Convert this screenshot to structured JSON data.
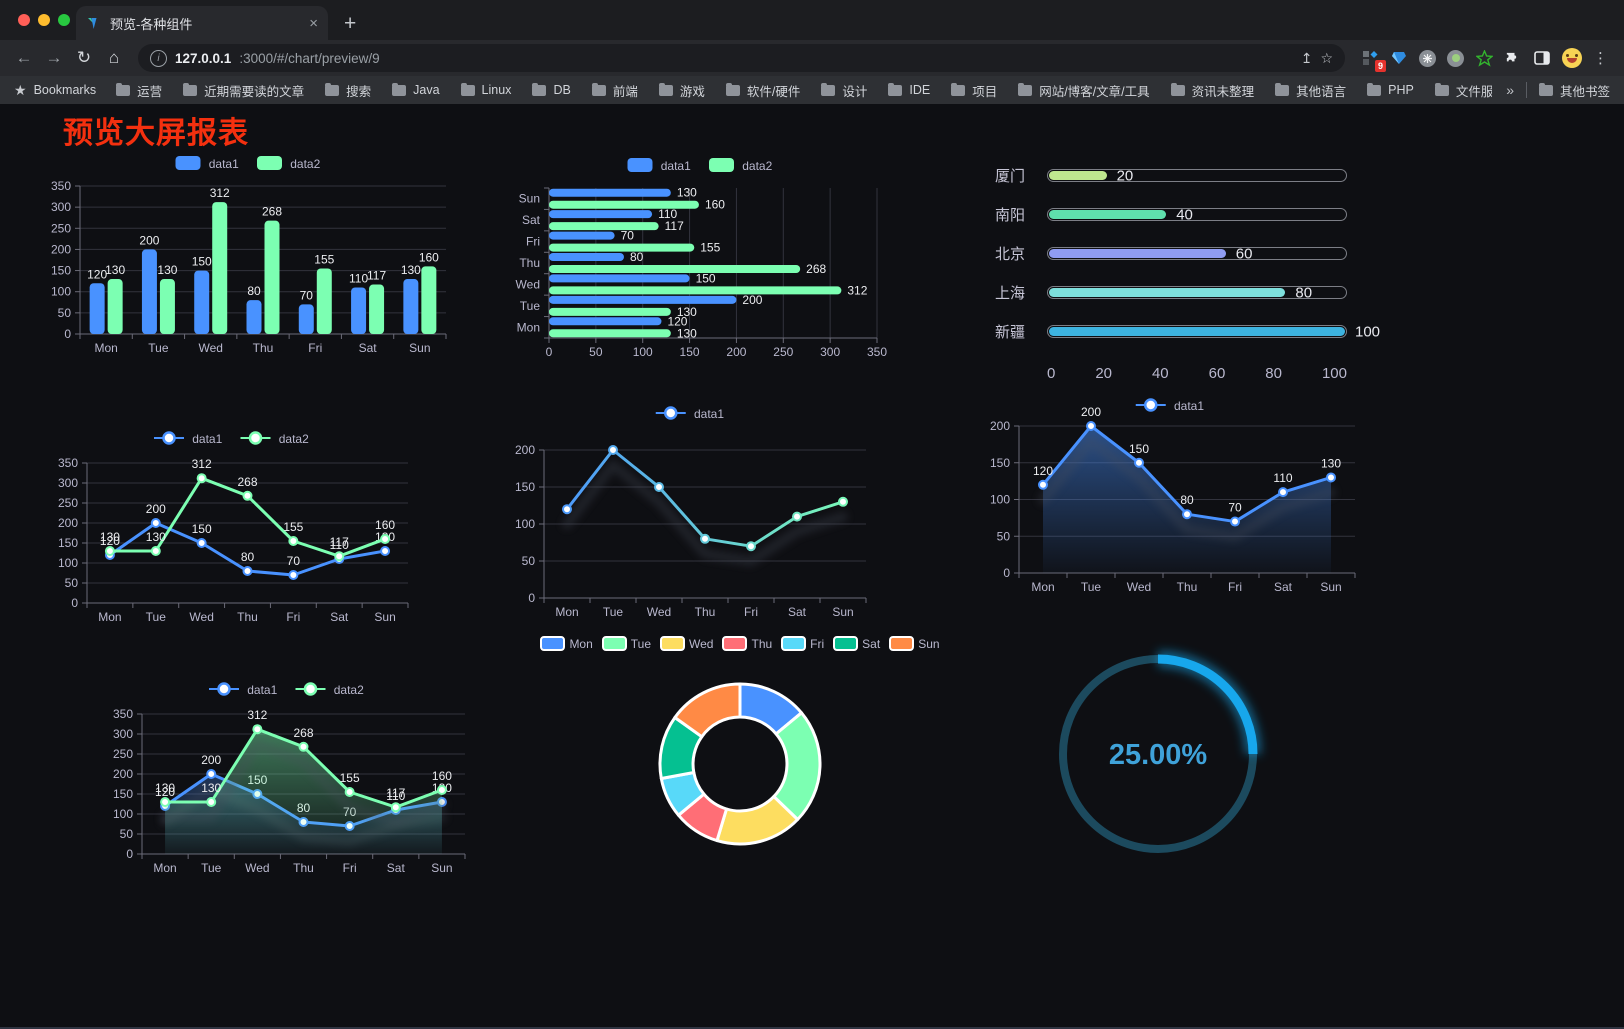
{
  "browser": {
    "window_controls": {
      "close_color": "#ff5f57",
      "minimize_color": "#febc2e",
      "maximize_color": "#28c840"
    },
    "tab": {
      "title": "预览-各种组件",
      "close_glyph": "×",
      "new_tab_glyph": "+"
    },
    "nav": {
      "back_glyph": "←",
      "forward_glyph": "→",
      "reload_glyph": "↻",
      "home_glyph": "⌂",
      "url_host": "127.0.0.1",
      "url_rest": ":3000/#/chart/preview/9",
      "share_glyph": "↥",
      "star_glyph": "☆",
      "menu_glyph": "⋮"
    },
    "extensions": {
      "badge": "9"
    },
    "bookmarks_bar": {
      "root_label": "Bookmarks",
      "folders": [
        "运营",
        "近期需要读的文章",
        "搜索",
        "Java",
        "Linux",
        "DB",
        "前端",
        "游戏",
        "软件/硬件",
        "设计",
        "IDE",
        "项目",
        "网站/博客/文章/工具",
        "资讯未整理",
        "其他语言",
        "PHP",
        "文件服务器"
      ],
      "overflow_glyph": "»",
      "other_bookmarks_label": "其他书签"
    }
  },
  "page": {
    "title": "预览大屏报表",
    "title_color": "#f4300f",
    "background": "#0e0f13"
  },
  "chart_data": [
    {
      "id": "grouped-bar",
      "type": "bar",
      "categories": [
        "Mon",
        "Tue",
        "Wed",
        "Thu",
        "Fri",
        "Sat",
        "Sun"
      ],
      "series": [
        {
          "name": "data1",
          "color": "#4992ff",
          "values": [
            120,
            200,
            150,
            80,
            70,
            110,
            130
          ]
        },
        {
          "name": "data2",
          "color": "#7cffb2",
          "values": [
            130,
            130,
            312,
            268,
            155,
            117,
            160
          ]
        }
      ],
      "ylim": [
        0,
        350
      ],
      "ytick": 50,
      "labels": true,
      "legend_position": "top",
      "grid": true
    },
    {
      "id": "horizontal-bar",
      "type": "bar-horizontal",
      "categories": [
        "Mon",
        "Tue",
        "Wed",
        "Thu",
        "Fri",
        "Sat",
        "Sun"
      ],
      "series": [
        {
          "name": "data1",
          "color": "#4992ff",
          "values": [
            120,
            200,
            150,
            80,
            70,
            110,
            130
          ]
        },
        {
          "name": "data2",
          "color": "#7cffb2",
          "values": [
            130,
            130,
            312,
            268,
            155,
            117,
            160
          ]
        }
      ],
      "xlim": [
        0,
        350
      ],
      "xtick": 50,
      "labels": true,
      "legend_position": "top",
      "grid": true
    },
    {
      "id": "progress-bars",
      "type": "progress",
      "max": 100,
      "items": [
        {
          "label": "厦门",
          "value": 20,
          "color": "#bfe78f"
        },
        {
          "label": "南阳",
          "value": 40,
          "color": "#5fe0ad"
        },
        {
          "label": "北京",
          "value": 60,
          "color": "#8f9cf2"
        },
        {
          "label": "上海",
          "value": 80,
          "color": "#7ee0dd"
        },
        {
          "label": "新疆",
          "value": 100,
          "color": "#3db3e0"
        }
      ],
      "axis_ticks": [
        0,
        20,
        40,
        60,
        80,
        100
      ]
    },
    {
      "id": "line-two-series",
      "type": "line",
      "categories": [
        "Mon",
        "Tue",
        "Wed",
        "Thu",
        "Fri",
        "Sat",
        "Sun"
      ],
      "series": [
        {
          "name": "data1",
          "color": "#4992ff",
          "values": [
            120,
            200,
            150,
            80,
            70,
            110,
            130
          ]
        },
        {
          "name": "data2",
          "color": "#7cffb2",
          "values": [
            130,
            130,
            312,
            268,
            155,
            117,
            160
          ]
        }
      ],
      "ylim": [
        0,
        350
      ],
      "ytick": 50,
      "labels": true,
      "legend_position": "top",
      "grid": true
    },
    {
      "id": "line-gradient",
      "type": "line",
      "categories": [
        "Mon",
        "Tue",
        "Wed",
        "Thu",
        "Fri",
        "Sat",
        "Sun"
      ],
      "series": [
        {
          "name": "data1",
          "gradient": [
            "#4992ff",
            "#7cffb2"
          ],
          "color": "#4992ff",
          "values": [
            120,
            200,
            150,
            80,
            70,
            110,
            130
          ],
          "shadow": true
        }
      ],
      "ylim": [
        0,
        200
      ],
      "ytick": 50,
      "labels": false,
      "legend_position": "top",
      "grid": true
    },
    {
      "id": "area-single",
      "type": "area",
      "categories": [
        "Mon",
        "Tue",
        "Wed",
        "Thu",
        "Fri",
        "Sat",
        "Sun"
      ],
      "series": [
        {
          "name": "data1",
          "color": "#4992ff",
          "values": [
            120,
            200,
            150,
            80,
            70,
            110,
            130
          ],
          "shadow": true
        }
      ],
      "ylim": [
        0,
        200
      ],
      "ytick": 50,
      "labels": true,
      "legend_position": "top",
      "grid": true
    },
    {
      "id": "area-two-series",
      "type": "area",
      "categories": [
        "Mon",
        "Tue",
        "Wed",
        "Thu",
        "Fri",
        "Sat",
        "Sun"
      ],
      "series": [
        {
          "name": "data1",
          "color": "#4992ff",
          "values": [
            120,
            200,
            150,
            80,
            70,
            110,
            130
          ],
          "shadow": true
        },
        {
          "name": "data2",
          "color": "#7cffb2",
          "values": [
            130,
            130,
            312,
            268,
            155,
            117,
            160
          ],
          "shadow": true
        }
      ],
      "ylim": [
        0,
        350
      ],
      "ytick": 50,
      "labels": true,
      "legend_position": "top",
      "grid": true
    },
    {
      "id": "donut-pie",
      "type": "pie",
      "labels": [
        "Mon",
        "Tue",
        "Wed",
        "Thu",
        "Fri",
        "Sat",
        "Sun"
      ],
      "values": [
        120,
        200,
        150,
        80,
        70,
        110,
        130
      ],
      "colors": [
        "#4992ff",
        "#7cffb2",
        "#fddd60",
        "#ff6e76",
        "#58d9f9",
        "#05c091",
        "#ff8a45"
      ],
      "border_color": "#ffffff",
      "legend_position": "top"
    },
    {
      "id": "gauge-ring",
      "type": "gauge",
      "value": 25,
      "display": "25.00%",
      "progress_color": "#17a7ec",
      "track_color": "#1c4a5e",
      "text_color": "#3fa2d9"
    }
  ]
}
